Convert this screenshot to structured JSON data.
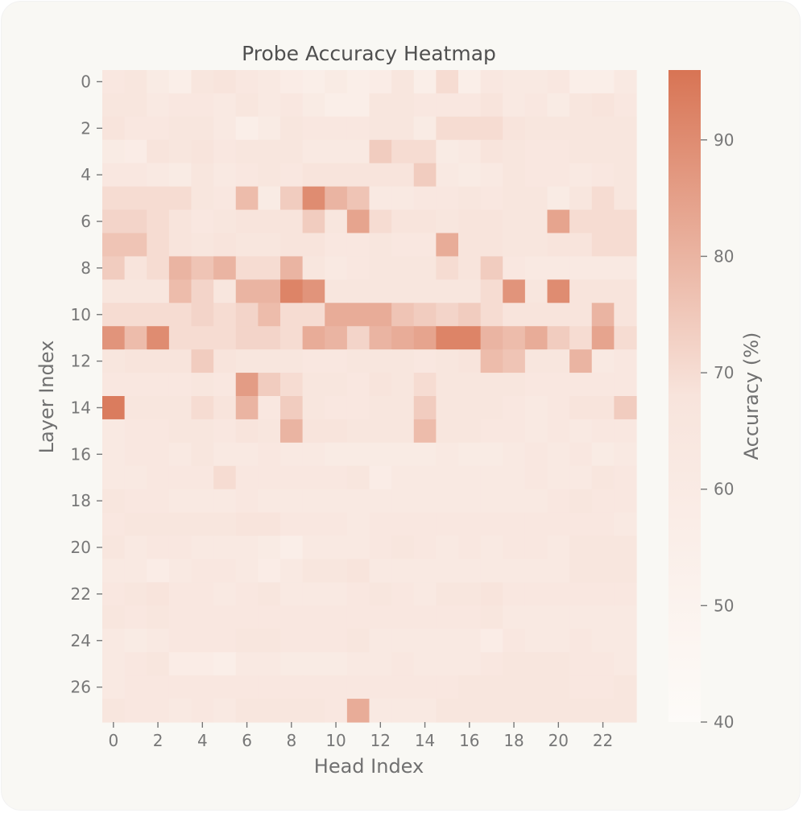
{
  "chart_data": {
    "type": "heatmap",
    "title": "Probe Accuracy Heatmap",
    "xlabel": "Head Index",
    "ylabel": "Layer Index",
    "colorbar_label": "Accuracy (%)",
    "x_ticks": [
      0,
      2,
      4,
      6,
      8,
      10,
      12,
      14,
      16,
      18,
      20,
      22
    ],
    "y_ticks": [
      0,
      2,
      4,
      6,
      8,
      10,
      12,
      14,
      16,
      18,
      20,
      22,
      24,
      26
    ],
    "colorbar_ticks": [
      40,
      50,
      60,
      70,
      80,
      90
    ],
    "value_range": [
      40,
      96
    ],
    "colors": {
      "low": "#fdfbf8",
      "high": "#d87454"
    },
    "n_layers": 28,
    "n_heads": 24,
    "values": [
      [
        64,
        66,
        60,
        56,
        66,
        68,
        64,
        62,
        58,
        56,
        60,
        56,
        58,
        66,
        56,
        70,
        56,
        64,
        62,
        62,
        64,
        56,
        56,
        62
      ],
      [
        66,
        66,
        62,
        64,
        64,
        62,
        66,
        62,
        64,
        60,
        56,
        56,
        66,
        66,
        64,
        64,
        64,
        68,
        62,
        64,
        60,
        66,
        68,
        64
      ],
      [
        68,
        64,
        64,
        66,
        66,
        62,
        56,
        60,
        66,
        64,
        64,
        64,
        66,
        66,
        60,
        70,
        70,
        70,
        68,
        66,
        66,
        66,
        66,
        66
      ],
      [
        60,
        58,
        68,
        66,
        68,
        64,
        66,
        66,
        66,
        62,
        62,
        62,
        74,
        70,
        70,
        60,
        62,
        68,
        66,
        64,
        64,
        66,
        66,
        66
      ],
      [
        64,
        64,
        62,
        60,
        66,
        62,
        64,
        66,
        64,
        68,
        68,
        68,
        68,
        68,
        74,
        62,
        60,
        62,
        66,
        64,
        64,
        62,
        64,
        66
      ],
      [
        70,
        70,
        70,
        70,
        66,
        64,
        78,
        60,
        74,
        90,
        80,
        76,
        62,
        62,
        64,
        64,
        66,
        64,
        66,
        66,
        60,
        66,
        70,
        66
      ],
      [
        72,
        72,
        70,
        68,
        64,
        66,
        68,
        68,
        68,
        74,
        66,
        84,
        70,
        68,
        68,
        66,
        68,
        68,
        66,
        66,
        84,
        70,
        70,
        70
      ],
      [
        76,
        76,
        70,
        68,
        66,
        68,
        66,
        66,
        68,
        68,
        64,
        64,
        66,
        64,
        64,
        82,
        68,
        68,
        66,
        66,
        68,
        68,
        70,
        70
      ],
      [
        74,
        68,
        70,
        80,
        76,
        80,
        70,
        70,
        80,
        66,
        62,
        64,
        66,
        66,
        66,
        70,
        68,
        74,
        64,
        62,
        62,
        62,
        62,
        62
      ],
      [
        66,
        66,
        66,
        78,
        72,
        66,
        80,
        80,
        92,
        88,
        66,
        66,
        66,
        66,
        66,
        66,
        66,
        70,
        88,
        66,
        90,
        68,
        68,
        68
      ],
      [
        70,
        70,
        70,
        70,
        72,
        70,
        72,
        78,
        70,
        70,
        82,
        82,
        82,
        76,
        74,
        72,
        74,
        70,
        68,
        68,
        68,
        68,
        80,
        68
      ],
      [
        88,
        78,
        90,
        70,
        70,
        70,
        72,
        72,
        70,
        82,
        80,
        72,
        80,
        82,
        84,
        92,
        92,
        80,
        78,
        82,
        74,
        70,
        84,
        70
      ],
      [
        66,
        68,
        68,
        68,
        74,
        68,
        66,
        66,
        66,
        64,
        64,
        66,
        66,
        66,
        64,
        66,
        68,
        78,
        76,
        66,
        66,
        80,
        62,
        64
      ],
      [
        64,
        64,
        64,
        64,
        66,
        64,
        86,
        74,
        70,
        66,
        66,
        64,
        68,
        66,
        70,
        66,
        66,
        66,
        66,
        64,
        64,
        64,
        64,
        64
      ],
      [
        94,
        66,
        66,
        66,
        70,
        68,
        80,
        64,
        74,
        66,
        64,
        64,
        66,
        66,
        74,
        66,
        66,
        66,
        64,
        62,
        64,
        68,
        68,
        74
      ],
      [
        62,
        64,
        64,
        66,
        66,
        64,
        68,
        66,
        80,
        68,
        68,
        66,
        66,
        66,
        78,
        66,
        66,
        64,
        64,
        62,
        64,
        62,
        64,
        64
      ],
      [
        62,
        64,
        64,
        62,
        66,
        62,
        62,
        64,
        62,
        62,
        60,
        60,
        60,
        60,
        60,
        62,
        60,
        60,
        62,
        64,
        62,
        64,
        60,
        62
      ],
      [
        62,
        62,
        64,
        64,
        64,
        70,
        64,
        64,
        64,
        64,
        64,
        66,
        58,
        62,
        62,
        62,
        62,
        62,
        62,
        64,
        62,
        62,
        66,
        64
      ],
      [
        66,
        64,
        64,
        62,
        62,
        62,
        64,
        62,
        62,
        62,
        62,
        62,
        62,
        62,
        62,
        62,
        62,
        62,
        62,
        62,
        64,
        66,
        64,
        64
      ],
      [
        64,
        66,
        66,
        66,
        66,
        66,
        68,
        68,
        64,
        64,
        64,
        62,
        64,
        64,
        64,
        64,
        64,
        64,
        64,
        64,
        64,
        64,
        64,
        62
      ],
      [
        66,
        62,
        64,
        64,
        62,
        62,
        62,
        60,
        56,
        62,
        62,
        62,
        64,
        66,
        64,
        62,
        64,
        62,
        64,
        64,
        62,
        66,
        66,
        66
      ],
      [
        62,
        62,
        58,
        62,
        64,
        64,
        62,
        58,
        62,
        66,
        66,
        68,
        62,
        62,
        62,
        62,
        62,
        62,
        62,
        62,
        62,
        66,
        66,
        66
      ],
      [
        64,
        66,
        68,
        64,
        64,
        62,
        64,
        66,
        62,
        62,
        62,
        64,
        66,
        64,
        62,
        66,
        66,
        68,
        64,
        64,
        64,
        64,
        64,
        64
      ],
      [
        66,
        64,
        66,
        64,
        64,
        64,
        64,
        64,
        64,
        64,
        64,
        64,
        64,
        64,
        64,
        64,
        64,
        66,
        62,
        62,
        62,
        62,
        62,
        62
      ],
      [
        62,
        60,
        62,
        64,
        64,
        64,
        66,
        66,
        64,
        64,
        64,
        66,
        62,
        62,
        62,
        62,
        62,
        58,
        64,
        62,
        62,
        64,
        62,
        62
      ],
      [
        62,
        64,
        66,
        58,
        58,
        56,
        62,
        62,
        60,
        60,
        60,
        62,
        62,
        64,
        62,
        62,
        62,
        64,
        66,
        66,
        66,
        64,
        64,
        62
      ],
      [
        62,
        64,
        64,
        64,
        64,
        64,
        64,
        64,
        64,
        64,
        64,
        64,
        64,
        64,
        64,
        64,
        66,
        66,
        66,
        66,
        66,
        64,
        64,
        66
      ],
      [
        66,
        64,
        64,
        62,
        64,
        62,
        66,
        66,
        66,
        66,
        64,
        82,
        62,
        62,
        62,
        66,
        66,
        66,
        66,
        66,
        66,
        66,
        66,
        66
      ]
    ]
  }
}
